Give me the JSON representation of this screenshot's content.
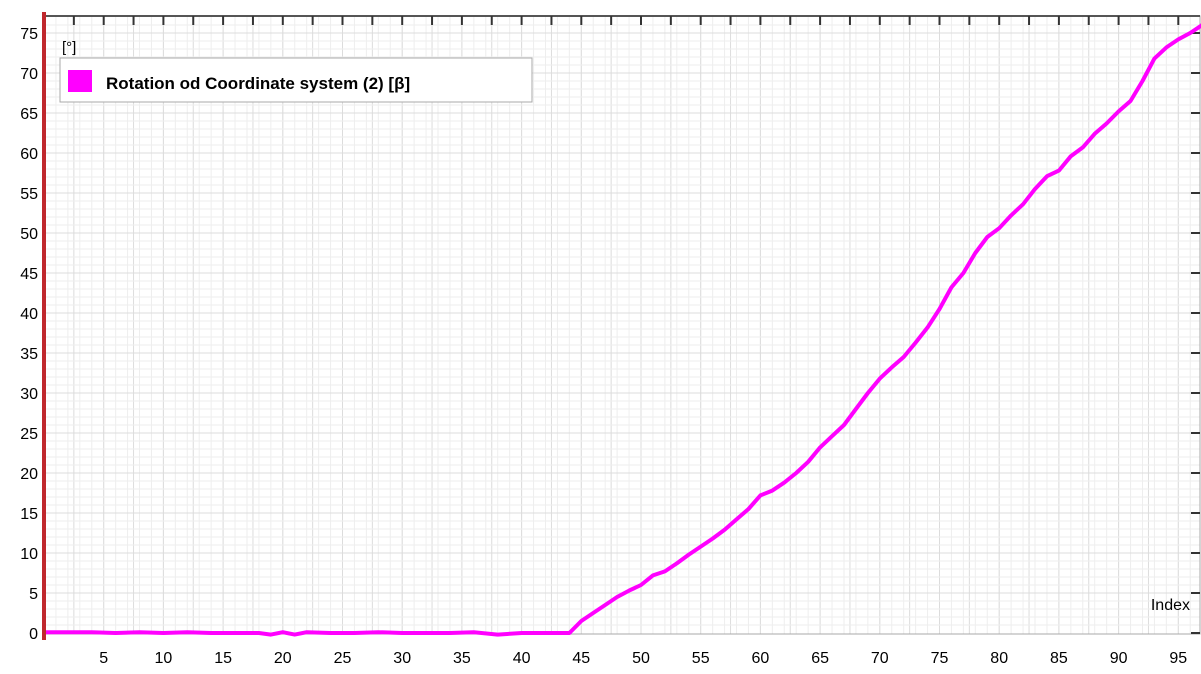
{
  "chart_data": {
    "type": "line",
    "title": "",
    "xlabel": "Index",
    "ylabel": "[°]",
    "xlim": [
      0,
      98
    ],
    "ylim": [
      0,
      76
    ],
    "x_ticks": [
      5,
      10,
      15,
      20,
      25,
      30,
      35,
      40,
      45,
      50,
      55,
      60,
      65,
      70,
      75,
      80,
      85,
      90,
      95
    ],
    "y_ticks": [
      0,
      5,
      10,
      15,
      20,
      25,
      30,
      35,
      40,
      45,
      50,
      55,
      60,
      65,
      70,
      75
    ],
    "grid": true,
    "legend_position": "top-left",
    "series": [
      {
        "name": "Rotation od Coordinate system (2) [β]",
        "color": "#ff00ff",
        "x": [
          0,
          2,
          4,
          6,
          8,
          10,
          12,
          14,
          16,
          18,
          19,
          20,
          21,
          22,
          24,
          26,
          28,
          30,
          32,
          34,
          36,
          38,
          40,
          42,
          44,
          45,
          46,
          47,
          48,
          49,
          50,
          51,
          52,
          53,
          54,
          55,
          56,
          57,
          58,
          59,
          60,
          61,
          62,
          63,
          64,
          65,
          66,
          67,
          68,
          69,
          70,
          71,
          72,
          73,
          74,
          75,
          76,
          77,
          78,
          79,
          80,
          81,
          82,
          83,
          84,
          85,
          86,
          87,
          88,
          89,
          90,
          91,
          92,
          93,
          94,
          95,
          96,
          97,
          98
        ],
        "y": [
          0.1,
          0.1,
          0.1,
          0.0,
          0.1,
          0.0,
          0.1,
          0.0,
          0.0,
          0.0,
          -0.2,
          0.1,
          -0.2,
          0.1,
          0.0,
          0.0,
          0.1,
          0.0,
          0.0,
          0.0,
          0.1,
          -0.2,
          0.0,
          0.0,
          0.0,
          1.5,
          2.5,
          3.5,
          4.5,
          5.3,
          6.0,
          7.2,
          7.7,
          8.7,
          9.8,
          10.8,
          11.8,
          12.9,
          14.2,
          15.5,
          17.2,
          17.8,
          18.8,
          20.0,
          21.4,
          23.2,
          24.6,
          26.0,
          28.0,
          30.0,
          31.8,
          33.2,
          34.5,
          36.3,
          38.2,
          40.5,
          43.2,
          45.0,
          47.5,
          49.5,
          50.6,
          52.2,
          53.6,
          55.5,
          57.1,
          57.8,
          59.6,
          60.7,
          62.4,
          63.7,
          65.2,
          66.5,
          69.0,
          71.8,
          73.2,
          74.2,
          75.0,
          76.0,
          76.5
        ]
      }
    ]
  }
}
